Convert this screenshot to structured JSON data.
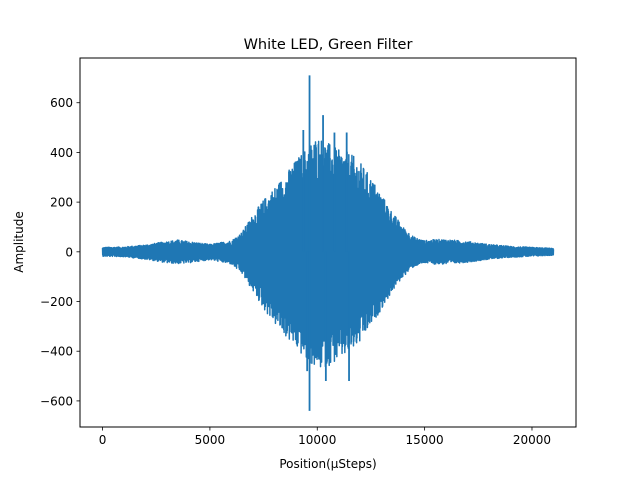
{
  "chart_data": {
    "type": "line",
    "title": "White LED, Green Filter",
    "xlabel": "Position(µSteps)",
    "ylabel": "Amplitude",
    "xlim": [
      -1050,
      22050
    ],
    "ylim": [
      -705,
      780
    ],
    "xticks": [
      0,
      5000,
      10000,
      15000,
      20000
    ],
    "xtick_labels": [
      "0",
      "5000",
      "10000",
      "15000",
      "20000"
    ],
    "yticks": [
      -600,
      -400,
      -200,
      0,
      200,
      400,
      600
    ],
    "ytick_labels": [
      "−600",
      "−400",
      "−200",
      "0",
      "200",
      "400",
      "600"
    ],
    "grid": false,
    "legend": "none",
    "series": [
      {
        "color": "#1f77b4",
        "x_range": [
          0,
          21000
        ],
        "envelope": {
          "x": [
            0,
            1000,
            2000,
            3000,
            3500,
            4000,
            5000,
            6000,
            6500,
            7000,
            7500,
            8000,
            8500,
            9000,
            9500,
            10000,
            10500,
            11000,
            11500,
            12000,
            12500,
            13000,
            13500,
            14000,
            14500,
            15000,
            15500,
            16000,
            17000,
            18000,
            19000,
            20000,
            21000
          ],
          "upper": [
            18,
            20,
            28,
            42,
            48,
            42,
            30,
            45,
            80,
            150,
            210,
            260,
            310,
            370,
            420,
            470,
            440,
            410,
            400,
            360,
            300,
            230,
            160,
            100,
            60,
            45,
            50,
            50,
            42,
            30,
            22,
            18,
            14
          ],
          "lower": [
            -18,
            -20,
            -30,
            -45,
            -48,
            -45,
            -32,
            -50,
            -90,
            -160,
            -230,
            -290,
            -340,
            -390,
            -440,
            -480,
            -460,
            -440,
            -410,
            -370,
            -300,
            -230,
            -160,
            -100,
            -60,
            -45,
            -50,
            -50,
            -42,
            -30,
            -22,
            -18,
            -14
          ]
        },
        "spikes": [
          {
            "x": 9640,
            "y": 710
          },
          {
            "x": 9640,
            "y": -640
          },
          {
            "x": 9530,
            "y": -480
          },
          {
            "x": 10270,
            "y": 550
          },
          {
            "x": 10400,
            "y": -520
          },
          {
            "x": 10800,
            "y": 480
          },
          {
            "x": 11370,
            "y": 480
          },
          {
            "x": 11480,
            "y": -520
          },
          {
            "x": 9350,
            "y": 490
          }
        ]
      }
    ]
  }
}
